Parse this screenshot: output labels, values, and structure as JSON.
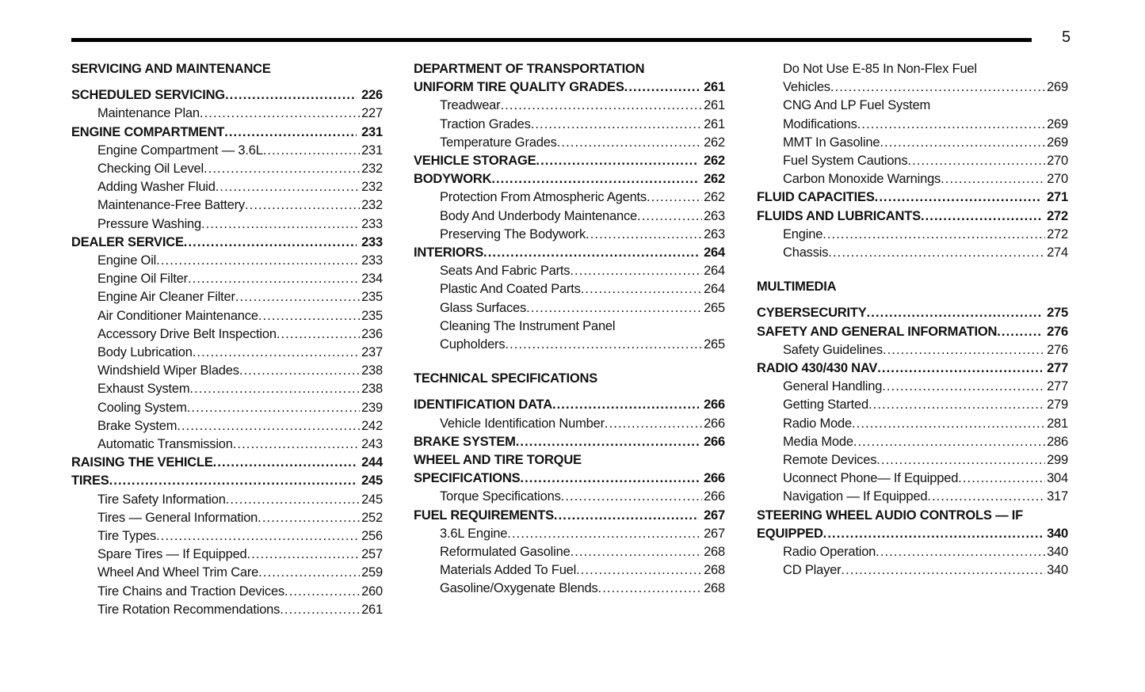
{
  "page_number": "5",
  "toc": {
    "columns": [
      {
        "items": [
          {
            "type": "header",
            "text": "SERVICING AND MAINTENANCE"
          },
          {
            "type": "entry",
            "level": "main",
            "lines": [
              "SCHEDULED SERVICING"
            ],
            "page": "226"
          },
          {
            "type": "entry",
            "level": "sub",
            "lines": [
              "Maintenance Plan"
            ],
            "page": "227"
          },
          {
            "type": "entry",
            "level": "main",
            "lines": [
              "ENGINE COMPARTMENT"
            ],
            "page": "231"
          },
          {
            "type": "entry",
            "level": "sub",
            "lines": [
              "Engine Compartment — 3.6L"
            ],
            "page": "231"
          },
          {
            "type": "entry",
            "level": "sub",
            "lines": [
              "Checking Oil Level"
            ],
            "page": "232"
          },
          {
            "type": "entry",
            "level": "sub",
            "lines": [
              "Adding Washer Fluid"
            ],
            "page": "232"
          },
          {
            "type": "entry",
            "level": "sub",
            "lines": [
              "Maintenance-Free Battery"
            ],
            "page": "232"
          },
          {
            "type": "entry",
            "level": "sub",
            "lines": [
              "Pressure Washing"
            ],
            "page": "233"
          },
          {
            "type": "entry",
            "level": "main",
            "lines": [
              "DEALER SERVICE"
            ],
            "page": "233"
          },
          {
            "type": "entry",
            "level": "sub",
            "lines": [
              "Engine Oil"
            ],
            "page": "233"
          },
          {
            "type": "entry",
            "level": "sub",
            "lines": [
              "Engine Oil Filter"
            ],
            "page": "234"
          },
          {
            "type": "entry",
            "level": "sub",
            "lines": [
              "Engine Air Cleaner Filter"
            ],
            "page": "235"
          },
          {
            "type": "entry",
            "level": "sub",
            "lines": [
              "Air Conditioner Maintenance"
            ],
            "page": "235"
          },
          {
            "type": "entry",
            "level": "sub",
            "lines": [
              "Accessory Drive Belt Inspection"
            ],
            "page": "236"
          },
          {
            "type": "entry",
            "level": "sub",
            "lines": [
              "Body Lubrication"
            ],
            "page": "237"
          },
          {
            "type": "entry",
            "level": "sub",
            "lines": [
              "Windshield Wiper Blades"
            ],
            "page": "238"
          },
          {
            "type": "entry",
            "level": "sub",
            "lines": [
              "Exhaust System"
            ],
            "page": "238"
          },
          {
            "type": "entry",
            "level": "sub",
            "lines": [
              "Cooling System"
            ],
            "page": "239"
          },
          {
            "type": "entry",
            "level": "sub",
            "lines": [
              "Brake System"
            ],
            "page": "242"
          },
          {
            "type": "entry",
            "level": "sub",
            "lines": [
              "Automatic Transmission"
            ],
            "page": "243"
          },
          {
            "type": "entry",
            "level": "main",
            "lines": [
              "RAISING THE VEHICLE"
            ],
            "page": "244"
          },
          {
            "type": "entry",
            "level": "main",
            "lines": [
              "TIRES"
            ],
            "page": "245"
          },
          {
            "type": "entry",
            "level": "sub",
            "lines": [
              "Tire Safety Information"
            ],
            "page": "245"
          },
          {
            "type": "entry",
            "level": "sub",
            "lines": [
              "Tires — General Information"
            ],
            "page": "252"
          },
          {
            "type": "entry",
            "level": "sub",
            "lines": [
              "Tire Types"
            ],
            "page": "256"
          },
          {
            "type": "entry",
            "level": "sub",
            "lines": [
              "Spare Tires — If Equipped"
            ],
            "page": "257"
          },
          {
            "type": "entry",
            "level": "sub",
            "lines": [
              "Wheel And Wheel Trim Care"
            ],
            "page": "259"
          },
          {
            "type": "entry",
            "level": "sub",
            "lines": [
              "Tire Chains and Traction Devices"
            ],
            "page": "260"
          },
          {
            "type": "entry",
            "level": "sub",
            "lines": [
              "Tire Rotation Recommendations"
            ],
            "page": "261"
          }
        ]
      },
      {
        "items": [
          {
            "type": "entry",
            "level": "main",
            "lines": [
              "DEPARTMENT OF TRANSPORTATION",
              "UNIFORM TIRE QUALITY GRADES"
            ],
            "page": "261"
          },
          {
            "type": "entry",
            "level": "sub",
            "lines": [
              "Treadwear"
            ],
            "page": "261"
          },
          {
            "type": "entry",
            "level": "sub",
            "lines": [
              "Traction Grades"
            ],
            "page": "261"
          },
          {
            "type": "entry",
            "level": "sub",
            "lines": [
              "Temperature Grades"
            ],
            "page": "262"
          },
          {
            "type": "entry",
            "level": "main",
            "lines": [
              "VEHICLE STORAGE"
            ],
            "page": "262"
          },
          {
            "type": "entry",
            "level": "main",
            "lines": [
              "BODYWORK"
            ],
            "page": "262"
          },
          {
            "type": "entry",
            "level": "sub",
            "lines": [
              "Protection From Atmospheric Agents"
            ],
            "page": "262"
          },
          {
            "type": "entry",
            "level": "sub",
            "lines": [
              "Body And Underbody Maintenance"
            ],
            "page": "263"
          },
          {
            "type": "entry",
            "level": "sub",
            "lines": [
              "Preserving The Bodywork"
            ],
            "page": "263"
          },
          {
            "type": "entry",
            "level": "main",
            "lines": [
              "INTERIORS"
            ],
            "page": "264"
          },
          {
            "type": "entry",
            "level": "sub",
            "lines": [
              "Seats And Fabric Parts"
            ],
            "page": "264"
          },
          {
            "type": "entry",
            "level": "sub",
            "lines": [
              "Plastic And Coated Parts"
            ],
            "page": "264"
          },
          {
            "type": "entry",
            "level": "sub",
            "lines": [
              "Glass Surfaces"
            ],
            "page": "265"
          },
          {
            "type": "entry",
            "level": "sub",
            "lines": [
              "Cleaning The Instrument Panel",
              "Cupholders"
            ],
            "page": "265"
          },
          {
            "type": "header",
            "text": "TECHNICAL SPECIFICATIONS"
          },
          {
            "type": "entry",
            "level": "main",
            "lines": [
              "IDENTIFICATION DATA"
            ],
            "page": "266"
          },
          {
            "type": "entry",
            "level": "sub",
            "lines": [
              "Vehicle Identification Number"
            ],
            "page": "266"
          },
          {
            "type": "entry",
            "level": "main",
            "lines": [
              "BRAKE SYSTEM"
            ],
            "page": "266"
          },
          {
            "type": "entry",
            "level": "main",
            "lines": [
              "WHEEL AND TIRE TORQUE",
              "SPECIFICATIONS"
            ],
            "page": "266"
          },
          {
            "type": "entry",
            "level": "sub",
            "lines": [
              "Torque Specifications"
            ],
            "page": "266"
          },
          {
            "type": "entry",
            "level": "main",
            "lines": [
              "FUEL REQUIREMENTS"
            ],
            "page": "267"
          },
          {
            "type": "entry",
            "level": "sub",
            "lines": [
              "3.6L Engine"
            ],
            "page": "267"
          },
          {
            "type": "entry",
            "level": "sub",
            "lines": [
              "Reformulated Gasoline"
            ],
            "page": "268"
          },
          {
            "type": "entry",
            "level": "sub",
            "lines": [
              "Materials Added To Fuel"
            ],
            "page": "268"
          },
          {
            "type": "entry",
            "level": "sub",
            "lines": [
              "Gasoline/Oxygenate Blends"
            ],
            "page": "268"
          }
        ]
      },
      {
        "items": [
          {
            "type": "entry",
            "level": "sub",
            "lines": [
              "Do Not Use E-85 In Non-Flex Fuel",
              "Vehicles"
            ],
            "page": "269"
          },
          {
            "type": "entry",
            "level": "sub",
            "lines": [
              "CNG And LP Fuel System",
              "Modifications"
            ],
            "page": "269"
          },
          {
            "type": "entry",
            "level": "sub",
            "lines": [
              "MMT In Gasoline"
            ],
            "page": "269"
          },
          {
            "type": "entry",
            "level": "sub",
            "lines": [
              "Fuel System Cautions"
            ],
            "page": "270"
          },
          {
            "type": "entry",
            "level": "sub",
            "lines": [
              "Carbon Monoxide Warnings"
            ],
            "page": "270"
          },
          {
            "type": "entry",
            "level": "main",
            "lines": [
              "FLUID CAPACITIES"
            ],
            "page": "271"
          },
          {
            "type": "entry",
            "level": "main",
            "lines": [
              "FLUIDS AND LUBRICANTS"
            ],
            "page": "272"
          },
          {
            "type": "entry",
            "level": "sub",
            "lines": [
              "Engine"
            ],
            "page": "272"
          },
          {
            "type": "entry",
            "level": "sub",
            "lines": [
              "Chassis"
            ],
            "page": "274"
          },
          {
            "type": "header",
            "text": "MULTIMEDIA"
          },
          {
            "type": "entry",
            "level": "main",
            "lines": [
              "CYBERSECURITY"
            ],
            "page": "275"
          },
          {
            "type": "entry",
            "level": "main",
            "lines": [
              "SAFETY AND GENERAL INFORMATION"
            ],
            "page": "276"
          },
          {
            "type": "entry",
            "level": "sub",
            "lines": [
              "Safety Guidelines"
            ],
            "page": "276"
          },
          {
            "type": "entry",
            "level": "main",
            "lines": [
              "RADIO 430/430 NAV"
            ],
            "page": "277"
          },
          {
            "type": "entry",
            "level": "sub",
            "lines": [
              "General Handling"
            ],
            "page": "277"
          },
          {
            "type": "entry",
            "level": "sub",
            "lines": [
              "Getting Started"
            ],
            "page": "279"
          },
          {
            "type": "entry",
            "level": "sub",
            "lines": [
              "Radio Mode"
            ],
            "page": "281"
          },
          {
            "type": "entry",
            "level": "sub",
            "lines": [
              "Media Mode"
            ],
            "page": "286"
          },
          {
            "type": "entry",
            "level": "sub",
            "lines": [
              "Remote Devices"
            ],
            "page": "299"
          },
          {
            "type": "entry",
            "level": "sub",
            "lines": [
              "Uconnect Phone— If Equipped"
            ],
            "page": "304"
          },
          {
            "type": "entry",
            "level": "sub",
            "lines": [
              "Navigation — If Equipped"
            ],
            "page": "317"
          },
          {
            "type": "entry",
            "level": "main",
            "lines": [
              "STEERING WHEEL AUDIO CONTROLS — IF",
              "EQUIPPED"
            ],
            "page": "340"
          },
          {
            "type": "entry",
            "level": "sub",
            "lines": [
              "Radio Operation"
            ],
            "page": "340"
          },
          {
            "type": "entry",
            "level": "sub",
            "lines": [
              "CD Player"
            ],
            "page": "340"
          }
        ]
      }
    ]
  }
}
